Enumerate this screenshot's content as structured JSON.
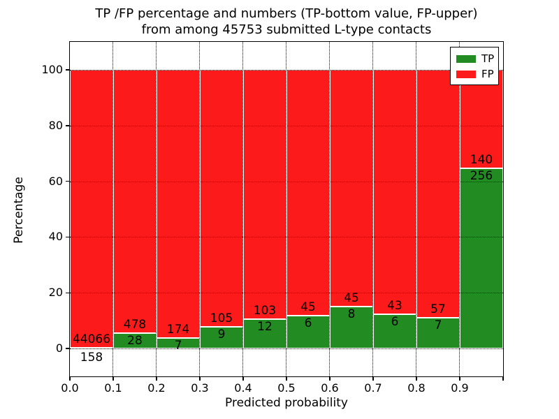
{
  "chart_data": {
    "type": "bar",
    "stacked": true,
    "title_line1": "TP /FP percentage and numbers (TP-bottom value, FP-upper)",
    "title_line2": "from among 45753 submitted L-type contacts",
    "xlabel": "Predicted probability",
    "ylabel": "Percentage",
    "x_tick_labels": [
      "0.0",
      "0.1",
      "0.2",
      "0.3",
      "0.4",
      "0.5",
      "0.6",
      "0.7",
      "0.8",
      "0.9"
    ],
    "y_ticks": [
      0,
      20,
      40,
      60,
      80,
      100
    ],
    "ylim": [
      -10,
      110
    ],
    "xlim": [
      0.0,
      1.0
    ],
    "bin_width": 0.1,
    "grid": true,
    "legend_position": "upper right",
    "categories": [
      "0.0-0.1",
      "0.1-0.2",
      "0.2-0.3",
      "0.3-0.4",
      "0.4-0.5",
      "0.5-0.6",
      "0.6-0.7",
      "0.7-0.8",
      "0.8-0.9",
      "0.9-1.0"
    ],
    "series": [
      {
        "name": "TP",
        "color": "#228b22",
        "counts": [
          158,
          28,
          7,
          9,
          12,
          6,
          8,
          6,
          7,
          256
        ]
      },
      {
        "name": "FP",
        "color": "#fd1a1a",
        "counts": [
          44066,
          478,
          174,
          105,
          103,
          45,
          45,
          43,
          57,
          140
        ]
      }
    ],
    "tp_percent_of_bin": [
      0.36,
      5.53,
      3.87,
      7.89,
      10.43,
      11.76,
      15.09,
      12.24,
      10.94,
      64.65
    ],
    "fp_percent_of_bin": [
      99.64,
      94.47,
      96.13,
      92.11,
      89.57,
      88.24,
      84.91,
      87.76,
      89.06,
      35.35
    ],
    "legend": [
      {
        "label": "TP",
        "color": "#228b22"
      },
      {
        "label": "FP",
        "color": "#fd1a1a"
      }
    ]
  }
}
